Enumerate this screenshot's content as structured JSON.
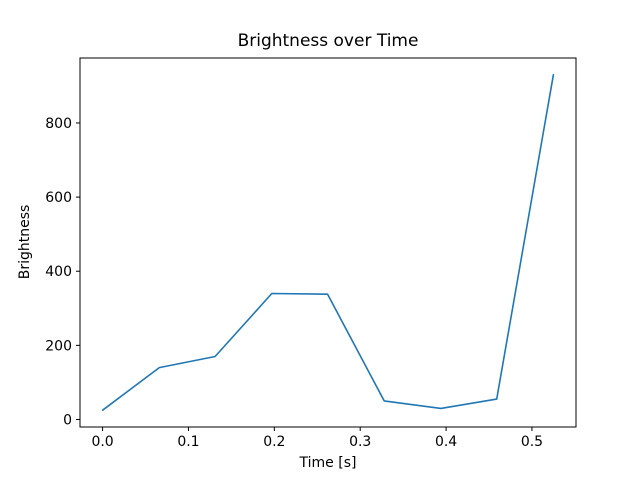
{
  "chart_data": {
    "type": "line",
    "title": "Brightness over Time",
    "xlabel": "Time [s]",
    "ylabel": "Brightness",
    "x": [
      0.0,
      0.066,
      0.131,
      0.197,
      0.262,
      0.328,
      0.394,
      0.459,
      0.525
    ],
    "y": [
      25,
      140,
      170,
      340,
      338,
      50,
      30,
      55,
      930
    ],
    "series": [
      {
        "name": "Brightness",
        "values": [
          25,
          140,
          170,
          340,
          338,
          50,
          30,
          55,
          930
        ]
      }
    ],
    "xticks": [
      0.0,
      0.1,
      0.2,
      0.3,
      0.4,
      0.5
    ],
    "xtick_labels": [
      "0.0",
      "0.1",
      "0.2",
      "0.3",
      "0.4",
      "0.5"
    ],
    "yticks": [
      0,
      200,
      400,
      600,
      800
    ],
    "ytick_labels": [
      "0",
      "200",
      "400",
      "600",
      "800"
    ],
    "xlim": [
      -0.0263,
      0.5513
    ],
    "ylim": [
      -20.3,
      975.3
    ],
    "grid": false,
    "legend": "none",
    "line_color": "#1f77b4",
    "spine_color": "#000000",
    "background": "#ffffff"
  }
}
